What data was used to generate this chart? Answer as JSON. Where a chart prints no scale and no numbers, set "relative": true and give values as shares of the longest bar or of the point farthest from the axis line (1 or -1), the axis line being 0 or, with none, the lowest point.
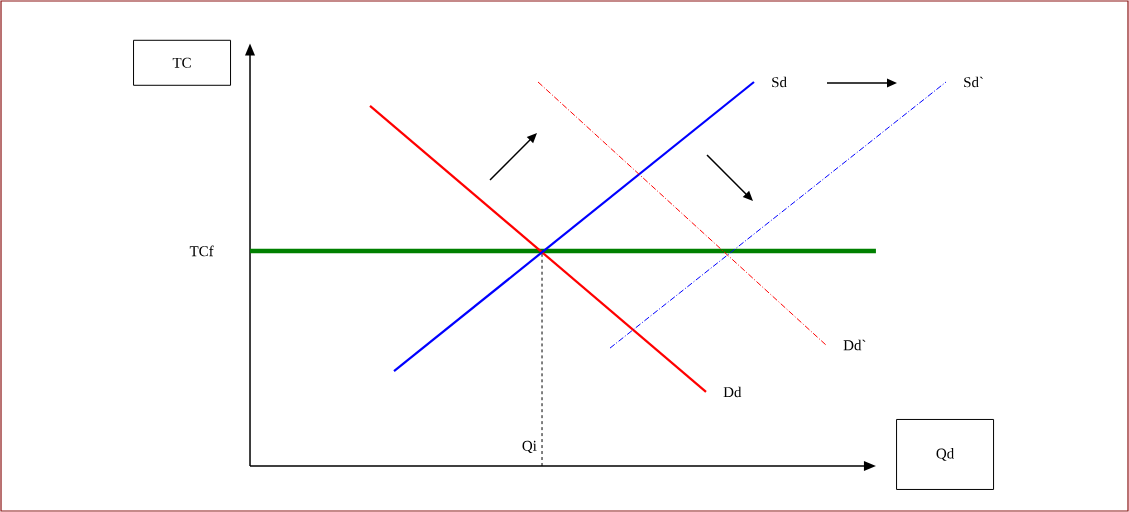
{
  "chart_data": {
    "type": "line",
    "relative": true,
    "xlabel": "Qd",
    "ylabel": "TC",
    "categories": [
      null,
      null,
      null,
      null,
      null,
      null,
      null,
      null,
      null,
      null,
      null,
      null,
      null,
      null,
      null,
      null,
      null,
      null,
      null,
      null,
      null,
      null,
      null,
      null,
      null,
      null,
      null,
      null,
      null,
      null
    ],
    "series": [
      {
        "name": "Dd",
        "color": "#ff0000",
        "line_style": "solid",
        "values": [
          null,
          null,
          null,
          null,
          null,
          0.938,
          null,
          null,
          null,
          null,
          null,
          null,
          null,
          null,
          null,
          null,
          null,
          null,
          null,
          0.193,
          null,
          null,
          null,
          null,
          null,
          null,
          null,
          null,
          null,
          null
        ]
      },
      {
        "name": "Sd",
        "color": "#0000ff",
        "line_style": "solid",
        "values": [
          null,
          null,
          null,
          null,
          null,
          null,
          0.247,
          null,
          null,
          null,
          null,
          null,
          null,
          null,
          null,
          null,
          null,
          null,
          null,
          null,
          null,
          1.0,
          null,
          null,
          null,
          null,
          null,
          null,
          null,
          null
        ]
      },
      {
        "name": "Dd`",
        "color": "#ff0000",
        "line_style": "dashed",
        "values": [
          null,
          null,
          null,
          null,
          null,
          null,
          null,
          null,
          null,
          null,
          null,
          null,
          1.0,
          null,
          null,
          null,
          null,
          null,
          null,
          null,
          null,
          null,
          null,
          null,
          0.315,
          null,
          null,
          null,
          null,
          null
        ]
      },
      {
        "name": "Sd`",
        "color": "#0000ff",
        "line_style": "dashed",
        "values": [
          null,
          null,
          null,
          null,
          null,
          null,
          null,
          null,
          null,
          null,
          null,
          null,
          null,
          null,
          null,
          0.307,
          null,
          null,
          null,
          null,
          null,
          null,
          null,
          null,
          null,
          null,
          null,
          null,
          null,
          1.0
        ]
      }
    ],
    "ref_lines": [
      {
        "axis": "y",
        "value": 0.56,
        "label": "TCf",
        "color": "#008000",
        "line_style": "solid"
      }
    ],
    "annotations": [
      "Qi"
    ]
  }
}
